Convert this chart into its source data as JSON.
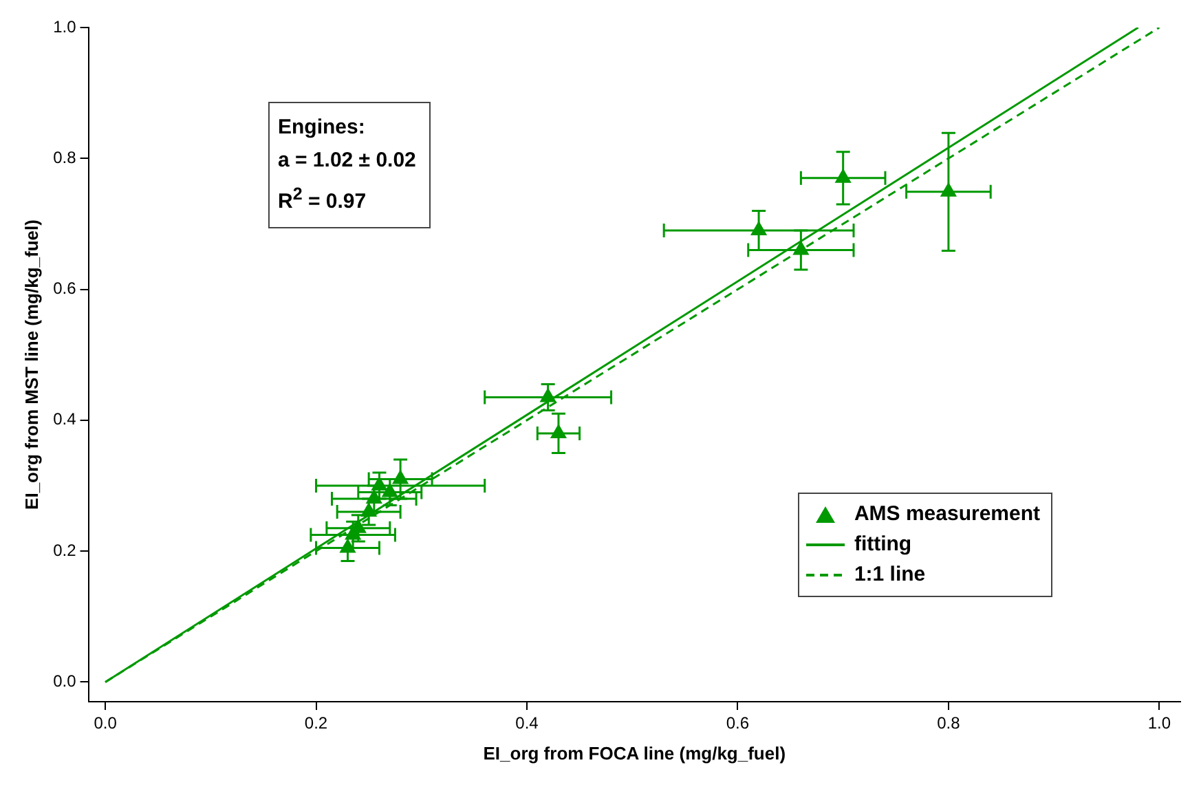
{
  "chart_data": {
    "type": "scatter",
    "xlabel": "EI_org from FOCA line (mg/kg_fuel)",
    "ylabel": "EI_org from MST line (mg/kg_fuel)",
    "annotations": [
      "Engines:",
      "a = 1.02 ± 0.02",
      "R$^{2}$ = 0.97"
    ],
    "xlim": [
      -0.016,
      1.02
    ],
    "ylim": [
      -0.03,
      1.0
    ],
    "xticks": [
      {
        "value": 0,
        "label": "0.0"
      },
      0.2,
      0.4,
      0.6,
      0.8,
      {
        "value": 1,
        "label": "1.0"
      }
    ],
    "yticks": [
      {
        "value": 0,
        "label": "0.0"
      },
      0.2,
      0.4,
      0.6,
      0.8,
      {
        "value": 1,
        "label": "1.0"
      }
    ],
    "grid": false,
    "legend": "bottom right",
    "series": [
      {
        "name": "AMS measurement",
        "marker": "triangle",
        "color": "#009900",
        "x": [
          0.23,
          0.235,
          0.24,
          0.25,
          0.255,
          0.26,
          0.27,
          0.28,
          0.42,
          0.43,
          0.62,
          0.66,
          0.7,
          0.8
        ],
        "values": [
          0.205,
          0.225,
          0.235,
          0.26,
          0.28,
          0.3,
          0.29,
          0.31,
          0.435,
          0.38,
          0.69,
          0.66,
          0.77,
          0.749
        ],
        "errors": [
          0.02,
          0.02,
          0.02,
          0.02,
          0.02,
          0.02,
          0.02,
          0.03,
          0.02,
          0.03,
          0.03,
          0.03,
          0.04,
          0.09
        ],
        "xerrors": [
          0.03,
          0.04,
          0.03,
          0.03,
          0.04,
          [
            0.2,
            0.36
          ],
          0.03,
          0.03,
          [
            0.36,
            0.48
          ],
          0.02,
          [
            0.53,
            0.71
          ],
          [
            0.61,
            0.71
          ],
          0.04,
          0.04
        ]
      },
      {
        "name": "fitting",
        "type": "line",
        "marker": "none",
        "color": "#009900",
        "line_style": "solid",
        "x": [
          0,
          0.98
        ],
        "values": [
          0,
          1.0
        ]
      },
      {
        "name": "1:1 line",
        "type": "line",
        "marker": "none",
        "color": "#009900",
        "line_style": "dashed",
        "x": [
          0,
          1
        ],
        "values": [
          0,
          1
        ]
      }
    ]
  }
}
